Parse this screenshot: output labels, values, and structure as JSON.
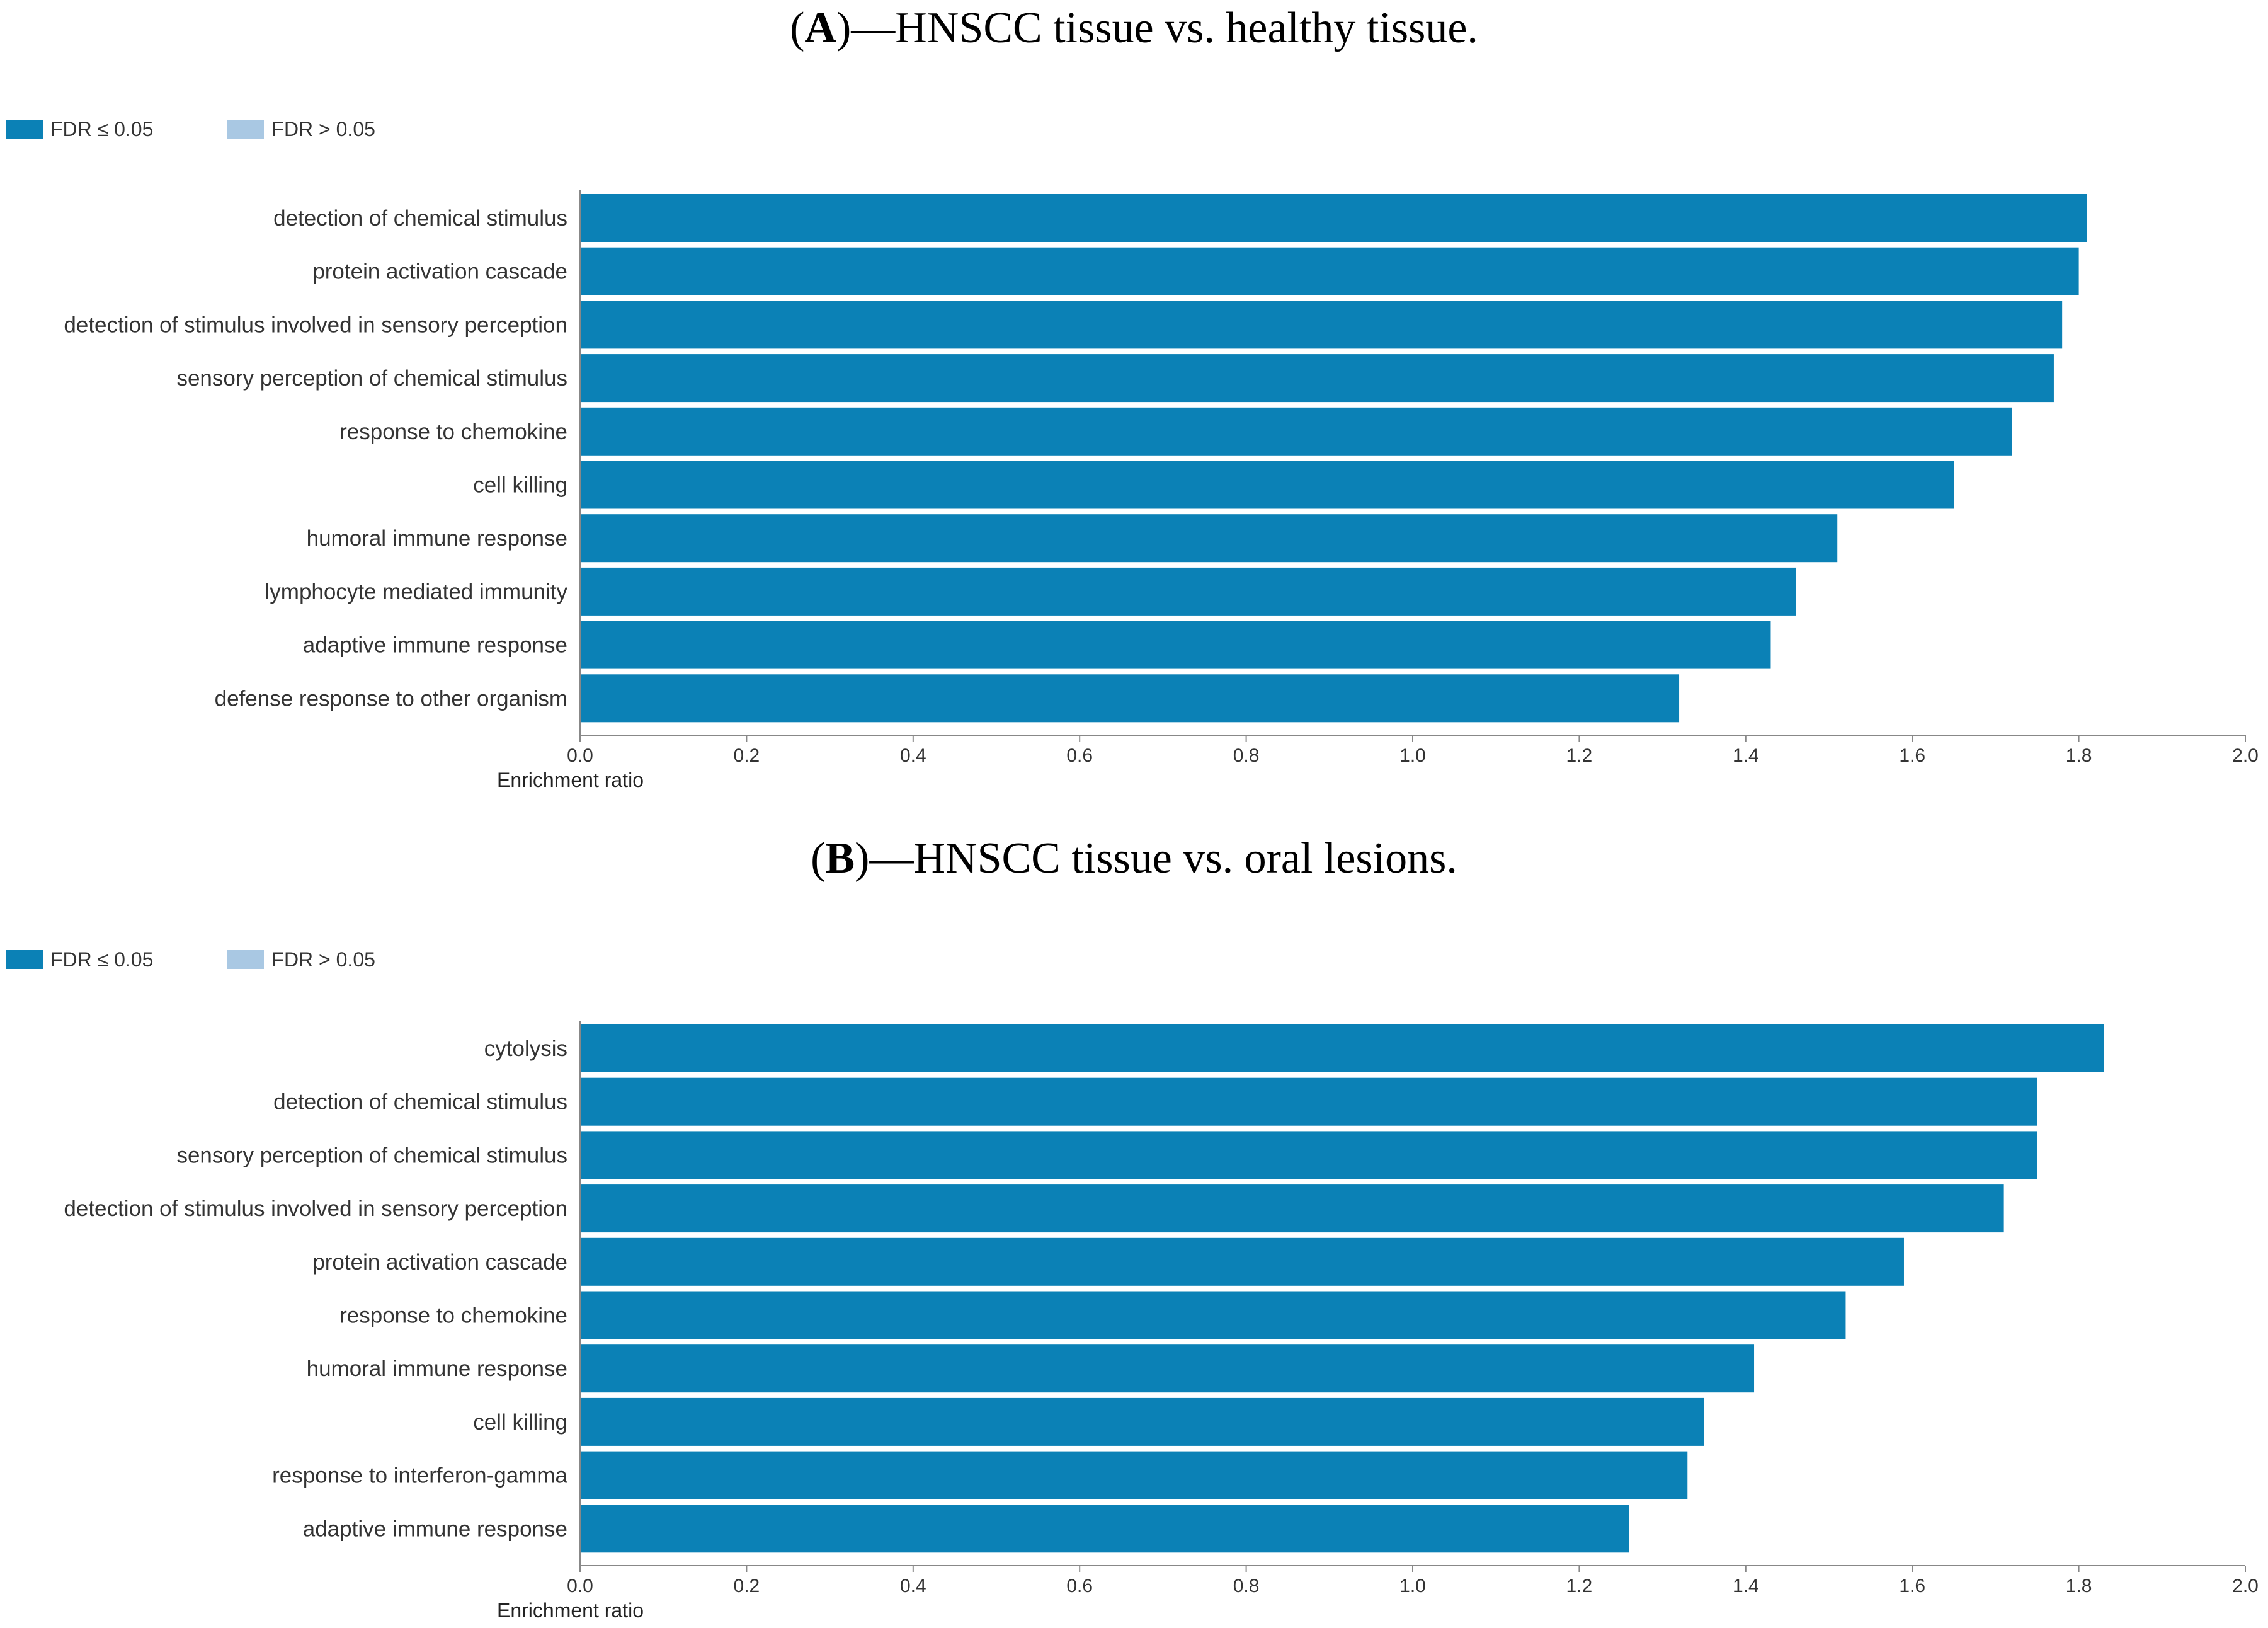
{
  "panels": [
    {
      "id": "a",
      "title_letter": "A",
      "title_text": "—HNSCC tissue vs. healthy tissue.",
      "legend": [
        {
          "label": "FDR ≤ 0.05",
          "color": "#0b81b6"
        },
        {
          "label": "FDR > 0.05",
          "color": "#a9c8e3"
        }
      ]
    },
    {
      "id": "b",
      "title_letter": "B",
      "title_text": "—HNSCC tissue vs. oral lesions.",
      "legend": [
        {
          "label": "FDR ≤ 0.05",
          "color": "#0b81b6"
        },
        {
          "label": "FDR > 0.05",
          "color": "#a9c8e3"
        }
      ]
    }
  ],
  "chart_data": [
    {
      "type": "bar",
      "orientation": "horizontal",
      "title": "(A)—HNSCC tissue vs. healthy tissue.",
      "categories": [
        "detection of chemical stimulus",
        "protein activation cascade",
        "detection of stimulus involved in sensory perception",
        "sensory perception of chemical stimulus",
        "response to chemokine",
        "cell killing",
        "humoral immune response",
        "lymphocyte mediated immunity",
        "adaptive immune response",
        "defense response to other organism"
      ],
      "values": [
        1.81,
        1.8,
        1.78,
        1.77,
        1.72,
        1.65,
        1.51,
        1.46,
        1.43,
        1.32
      ],
      "xlabel": "Enrichment ratio",
      "ylabel": "",
      "xlim": [
        0,
        2.0
      ],
      "xticks": [
        "0.0",
        "0.2",
        "0.4",
        "0.6",
        "0.8",
        "1.0",
        "1.2",
        "1.4",
        "1.6",
        "1.8",
        "2.0"
      ],
      "bar_color": "#0b81b6",
      "grid": false,
      "legend_position": "top-left"
    },
    {
      "type": "bar",
      "orientation": "horizontal",
      "title": "(B)—HNSCC tissue vs. oral lesions.",
      "categories": [
        "cytolysis",
        "detection of chemical stimulus",
        "sensory perception of chemical stimulus",
        "detection of stimulus involved in sensory perception",
        "protein activation cascade",
        "response to chemokine",
        "humoral immune response",
        "cell killing",
        "response to interferon-gamma",
        "adaptive immune response"
      ],
      "values": [
        1.83,
        1.75,
        1.75,
        1.71,
        1.59,
        1.52,
        1.41,
        1.35,
        1.33,
        1.26
      ],
      "xlabel": "Enrichment ratio",
      "ylabel": "",
      "xlim": [
        0,
        2.0
      ],
      "xticks": [
        "0.0",
        "0.2",
        "0.4",
        "0.6",
        "0.8",
        "1.0",
        "1.2",
        "1.4",
        "1.6",
        "1.8",
        "2.0"
      ],
      "bar_color": "#0b81b6",
      "grid": false,
      "legend_position": "top-left"
    }
  ]
}
